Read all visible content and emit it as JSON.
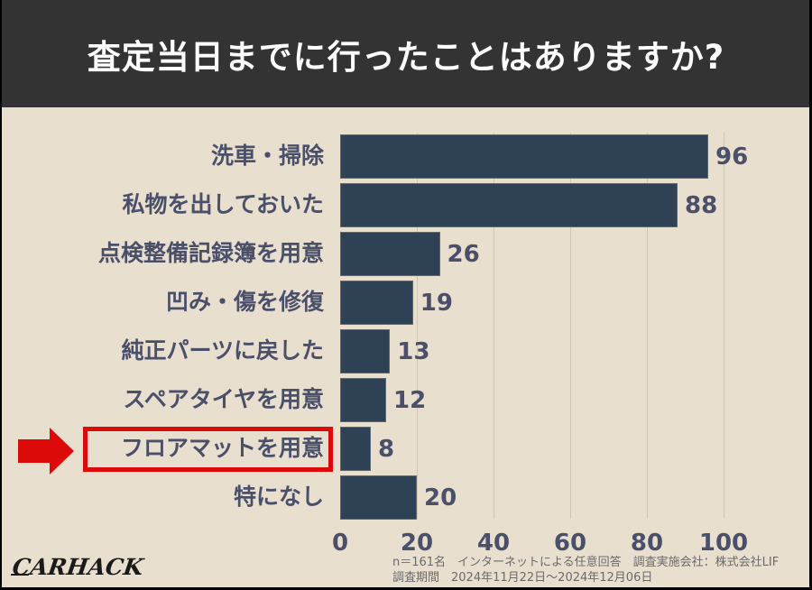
{
  "header": {
    "title": "査定当日までに行ったことはありますか?"
  },
  "chart_data": {
    "type": "bar",
    "orientation": "horizontal",
    "title": "査定当日までに行ったことはありますか?",
    "categories": [
      "洗車・掃除",
      "私物を出しておいた",
      "点検整備記録簿を用意",
      "凹み・傷を修復",
      "純正パーツに戻した",
      "スペアタイヤを用意",
      "フロアマットを用意",
      "特になし"
    ],
    "values": [
      96,
      88,
      26,
      19,
      13,
      12,
      8,
      20
    ],
    "xlabel": "",
    "ylabel": "",
    "xlim": [
      0,
      100
    ],
    "xticks": [
      0,
      20,
      40,
      60,
      80,
      100
    ],
    "grid": "vertical",
    "legend": "none",
    "bar_color": "#2e4155",
    "highlighted_category": "フロアマットを用意",
    "highlight_color": "#dd0a0a",
    "annotations": [
      "red arrow and red box around 'フロアマットを用意'"
    ]
  },
  "axis": {
    "ticks": [
      "0",
      "20",
      "40",
      "60",
      "80",
      "100"
    ]
  },
  "footer": {
    "note_line1": "n＝161名　インターネットによる任意回答　調査実施会社：株式会社LIF",
    "note_line2": "調査期間　2024年11月22日～2024年12月06日",
    "logo": "CARHACK"
  },
  "colors": {
    "title_bg": "#333333",
    "background": "#e8dfcf",
    "bar": "#2e4155",
    "label": "#4a4f6a",
    "highlight": "#dd0a0a"
  }
}
